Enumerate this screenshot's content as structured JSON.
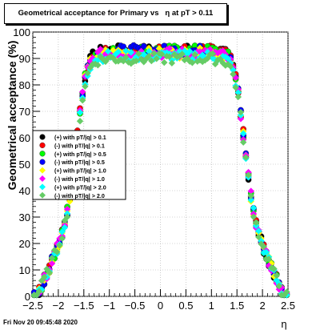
{
  "title": "Geometrical acceptance for Primary vs   η at pT > 0.11",
  "footer_text": "Fri Nov 20 09:45:48 2020",
  "chart_data": {
    "type": "scatter",
    "xlabel": "η",
    "ylabel": "Geometrical acceptance (%)",
    "xlim": [
      -2.5,
      2.5
    ],
    "ylim": [
      0,
      100
    ],
    "x_ticks": [
      "−2.5",
      "−2",
      "−1.5",
      "−1",
      "−0.5",
      "0",
      "0.5",
      "1",
      "1.5",
      "2",
      "2.5"
    ],
    "y_ticks": [
      "0",
      "10",
      "20",
      "30",
      "40",
      "50",
      "60",
      "70",
      "80",
      "90",
      "100"
    ],
    "grid": true,
    "legend_position": "left-middle",
    "series": [
      {
        "name": "(+) with pT/|q| > 0.1",
        "color": "#000000",
        "marker": "circle",
        "plateau": 93
      },
      {
        "name": "(-) with pT/|q| > 0.1",
        "color": "#ff0000",
        "marker": "circle",
        "plateau": 93
      },
      {
        "name": "(+) with pT/|q| > 0.5",
        "color": "#00ff00",
        "marker": "circle",
        "plateau": 93
      },
      {
        "name": "(-) with pT/|q| > 0.5",
        "color": "#0000ff",
        "marker": "circle",
        "plateau": 93
      },
      {
        "name": "(+) with pT/|q| > 1.0",
        "color": "#ffff00",
        "marker": "diamond",
        "plateau": 92
      },
      {
        "name": "(-) with pT/|q| > 1.0",
        "color": "#ff00ff",
        "marker": "diamond",
        "plateau": 92
      },
      {
        "name": "(+) with pT/|q| > 2.0",
        "color": "#00ffff",
        "marker": "diamond",
        "plateau": 91
      },
      {
        "name": "(-) with pT/|q| > 2.0",
        "color": "#66cc66",
        "marker": "diamond",
        "plateau": 90
      }
    ]
  }
}
